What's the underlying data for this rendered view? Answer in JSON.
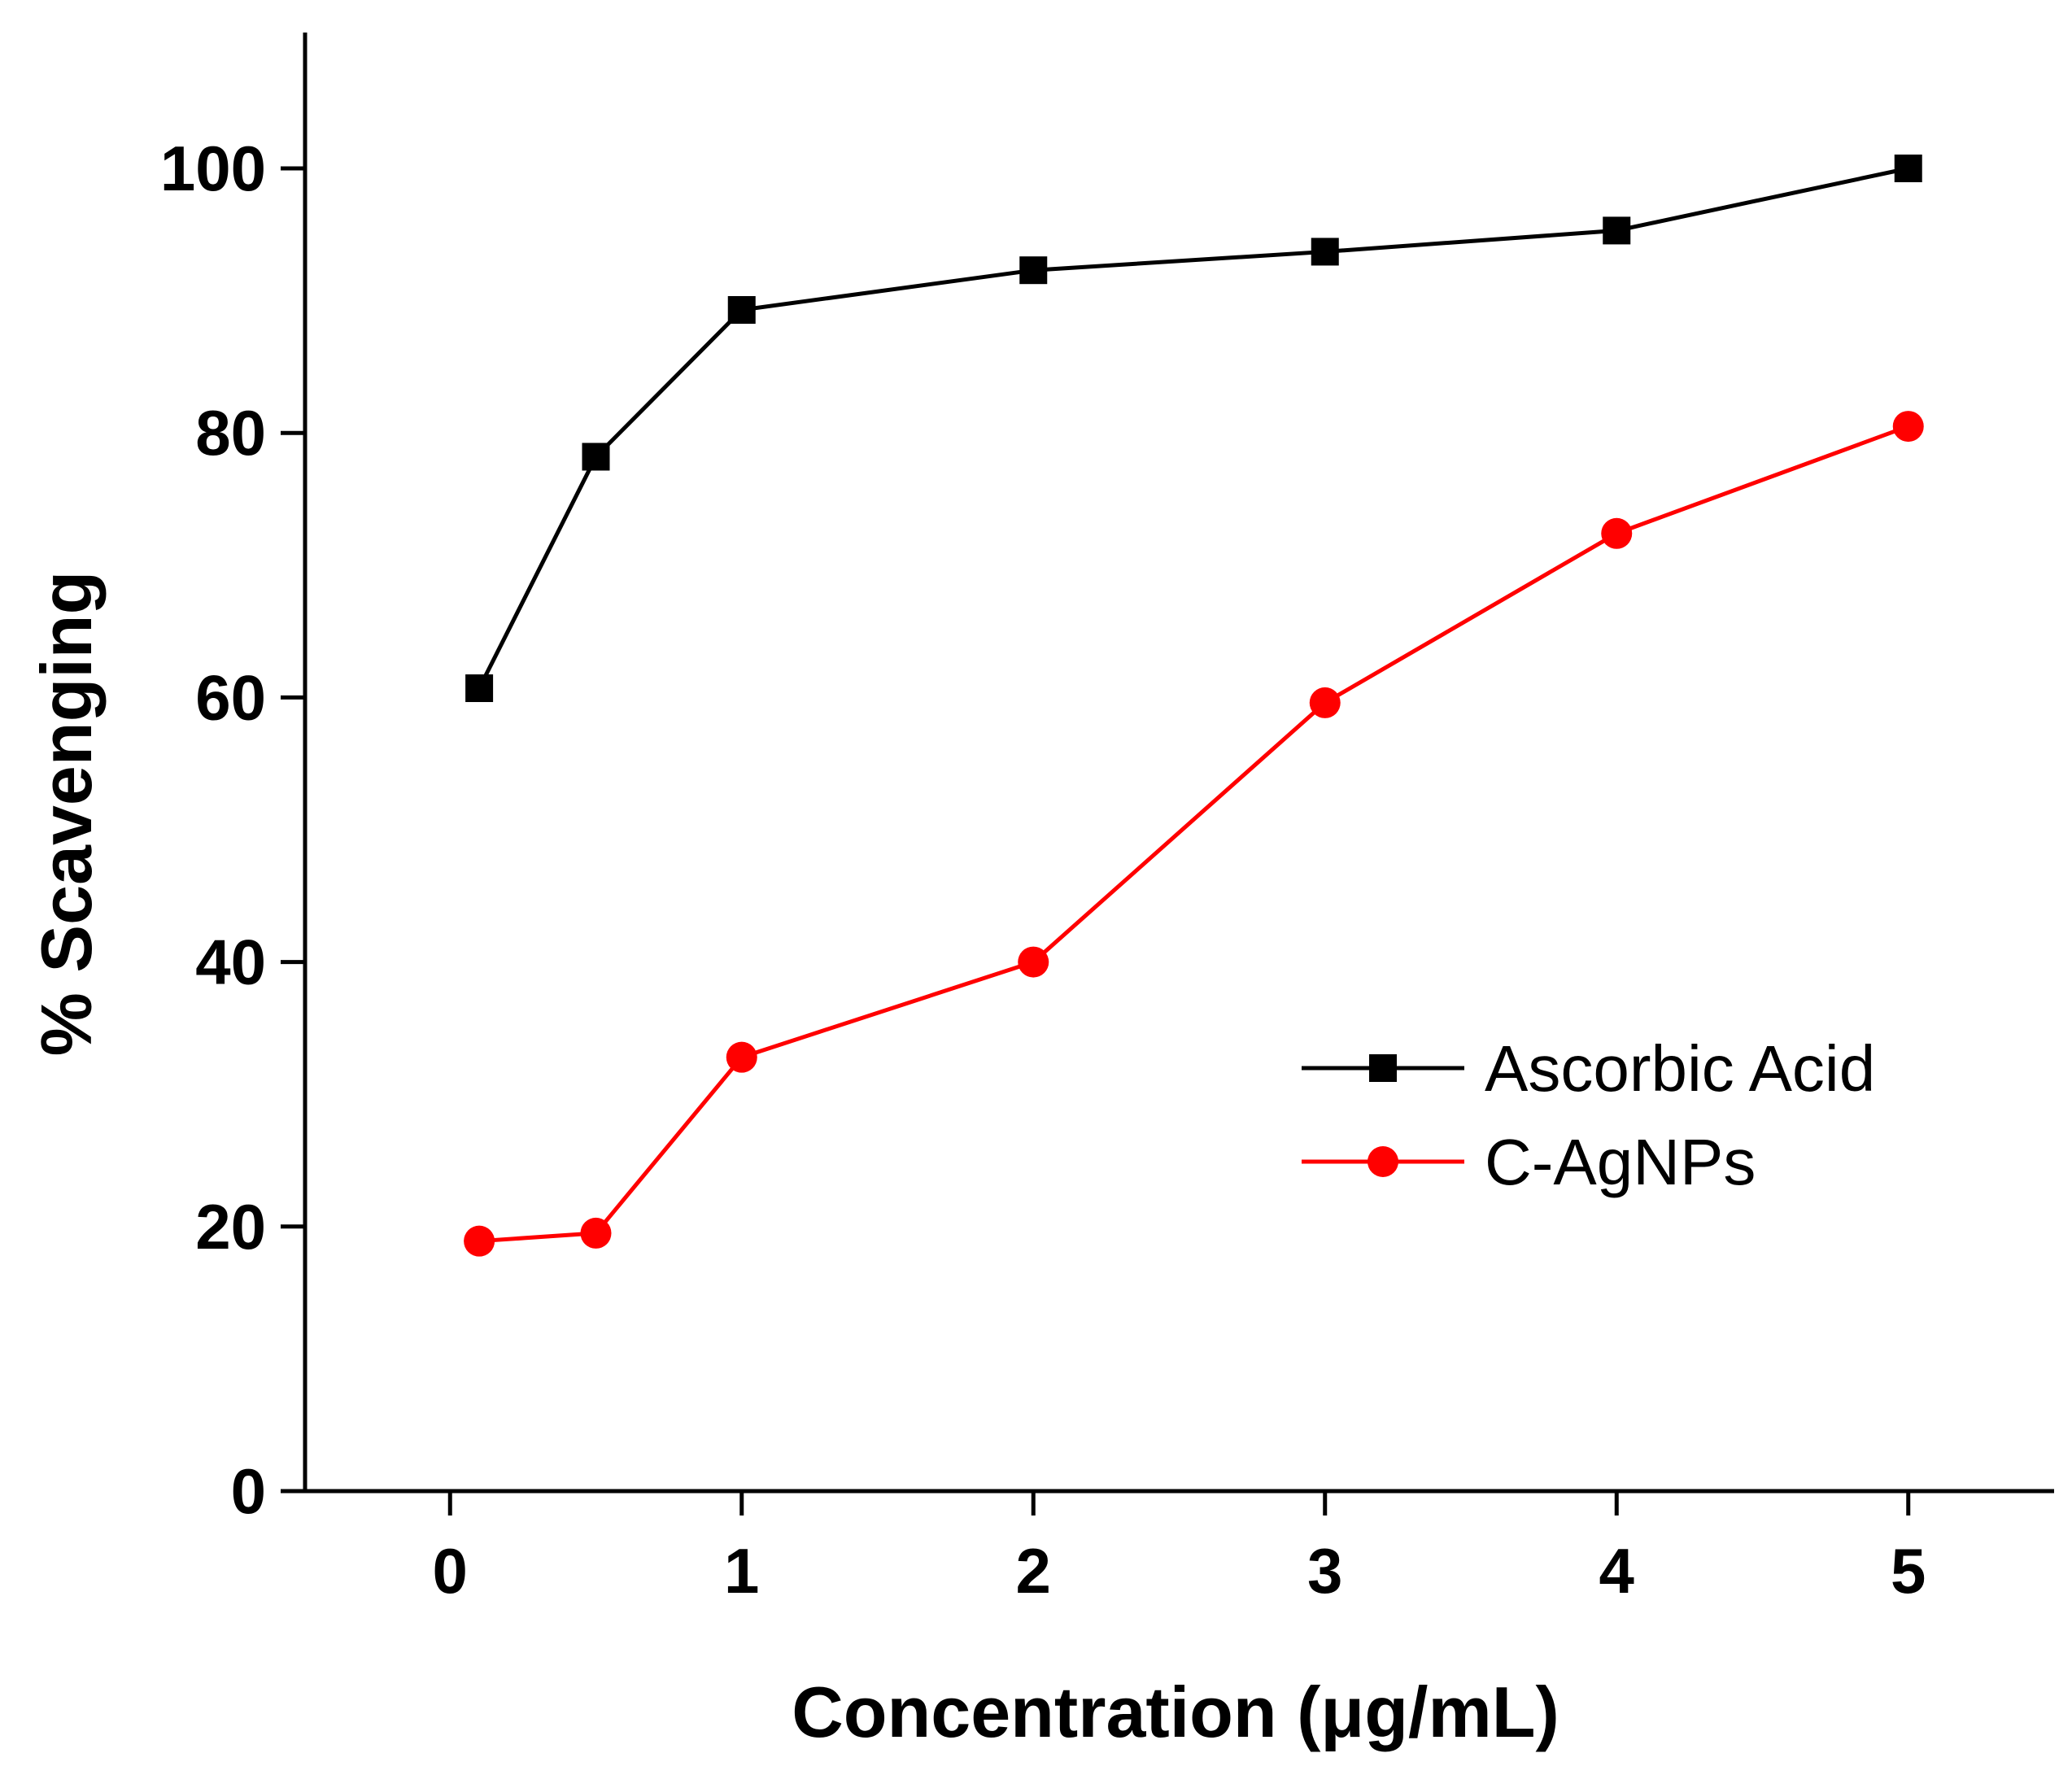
{
  "chart_data": {
    "type": "line",
    "title": "",
    "xlabel": "Concentration (μg/mL)",
    "ylabel": "% Scavenging",
    "xlim": [
      -0.5,
      5.5
    ],
    "ylim": [
      0,
      110
    ],
    "x_ticks": [
      0,
      1,
      2,
      3,
      4,
      5
    ],
    "x_tick_labels": [
      "0",
      "1",
      "2",
      "3",
      "4",
      "5"
    ],
    "y_ticks": [
      0,
      20,
      40,
      60,
      80,
      100
    ],
    "y_tick_labels": [
      "0",
      "20",
      "40",
      "60",
      "80",
      "100"
    ],
    "grid": false,
    "legend_position": "lower-right",
    "series": [
      {
        "name": "Ascorbic Acid",
        "color": "#000000",
        "marker": "square",
        "x": [
          0.1,
          0.5,
          1,
          2,
          3,
          4,
          5
        ],
        "values": [
          60.7,
          78.2,
          89.3,
          92.3,
          93.7,
          95.3,
          100.0
        ]
      },
      {
        "name": "C-AgNPs",
        "color": "#ff0000",
        "marker": "circle",
        "x": [
          0.1,
          0.5,
          1,
          2,
          3,
          4,
          5
        ],
        "values": [
          18.9,
          19.5,
          32.8,
          40.0,
          59.6,
          72.4,
          80.5
        ]
      }
    ]
  }
}
